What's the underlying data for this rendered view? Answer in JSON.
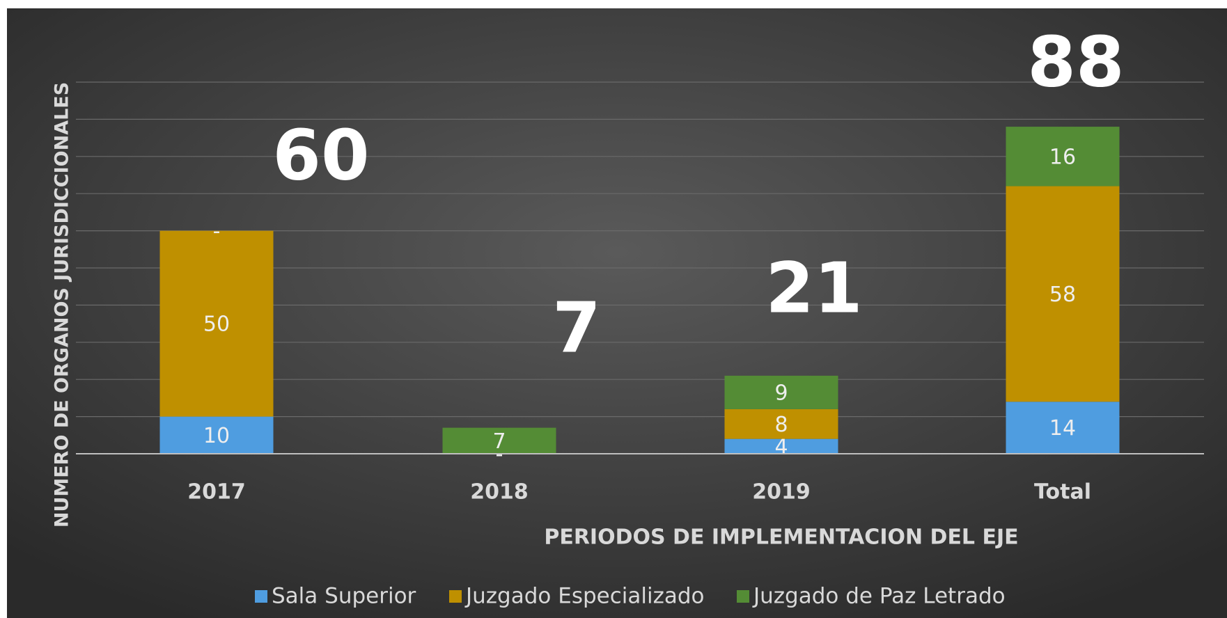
{
  "chart_data": {
    "type": "stacked_bar",
    "categories": [
      "2017",
      "2018",
      "2019",
      "Total"
    ],
    "series": [
      {
        "name": "Sala Superior",
        "color": "#4f9de0",
        "values": [
          10,
          0,
          4,
          14
        ],
        "value_labels": [
          "10",
          "-",
          "4",
          "14"
        ]
      },
      {
        "name": "Juzgado Especializado",
        "color": "#bf9000",
        "values": [
          50,
          0,
          8,
          58
        ],
        "value_labels": [
          "50",
          "-",
          "8",
          "58"
        ]
      },
      {
        "name": "Juzgado de Paz Letrado",
        "color": "#548c35",
        "values": [
          0,
          7,
          9,
          16
        ],
        "value_labels": [
          "-",
          "7",
          "9",
          "16"
        ]
      }
    ],
    "totals": [
      60,
      7,
      21,
      88
    ],
    "ylim": [
      0,
      100
    ],
    "yticks": [
      0,
      10,
      20,
      30,
      40,
      50,
      60,
      70,
      80,
      90,
      100
    ],
    "grid": true,
    "legend": "bottom",
    "x_label": "PERIODOS DE IMPLEMENTACION DEL EJE",
    "y_label": "NUMERO DE ORGANOS JURISDICCIONALES"
  }
}
